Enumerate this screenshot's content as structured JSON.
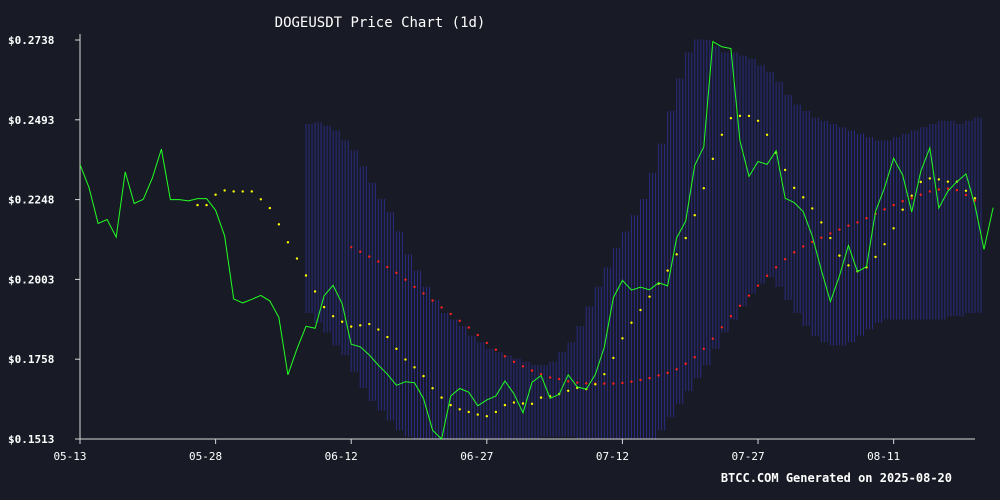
{
  "chart_data": {
    "type": "line",
    "title": "DOGEUSDT Price Chart (1d)",
    "footer": "BTCC.COM Generated on 2025-08-20",
    "y_ticks": [
      {
        "value": 0.2738,
        "label": "$0.2738"
      },
      {
        "value": 0.2493,
        "label": "$0.2493"
      },
      {
        "value": 0.2248,
        "label": "$0.2248"
      },
      {
        "value": 0.2003,
        "label": "$0.2003"
      },
      {
        "value": 0.1758,
        "label": "$0.1758"
      },
      {
        "value": 0.1513,
        "label": "$0.1513"
      }
    ],
    "ylim": [
      0.1513,
      0.2738
    ],
    "x_ticks": [
      {
        "index": 0,
        "label": "05-13"
      },
      {
        "index": 15,
        "label": "05-28"
      },
      {
        "index": 30,
        "label": "06-12"
      },
      {
        "index": 45,
        "label": "06-27"
      },
      {
        "index": 60,
        "label": "07-12"
      },
      {
        "index": 75,
        "label": "07-27"
      },
      {
        "index": 90,
        "label": "08-11"
      }
    ],
    "x_count": 100,
    "price": [
      0.2356,
      0.2285,
      0.2175,
      0.2187,
      0.2133,
      0.2333,
      0.2236,
      0.2249,
      0.2314,
      0.2403,
      0.2248,
      0.2248,
      0.2244,
      0.2251,
      0.2251,
      0.2215,
      0.2137,
      0.1943,
      0.1931,
      0.1942,
      0.1954,
      0.1937,
      0.1886,
      0.171,
      0.179,
      0.1859,
      0.1853,
      0.1953,
      0.1985,
      0.1928,
      0.1804,
      0.1796,
      0.1771,
      0.174,
      0.1712,
      0.1678,
      0.1689,
      0.1686,
      0.1637,
      0.154,
      0.1513,
      0.1645,
      0.1668,
      0.1657,
      0.1615,
      0.1633,
      0.1645,
      0.1691,
      0.1652,
      0.1593,
      0.1687,
      0.1708,
      0.1638,
      0.165,
      0.171,
      0.1673,
      0.1666,
      0.1711,
      0.1795,
      0.1947,
      0.2,
      0.197,
      0.1979,
      0.1971,
      0.1993,
      0.1983,
      0.2131,
      0.2182,
      0.2353,
      0.241,
      0.2733,
      0.2717,
      0.2712,
      0.2429,
      0.2319,
      0.2365,
      0.2356,
      0.2398,
      0.2252,
      0.2239,
      0.2211,
      0.2136,
      0.2032,
      0.1935,
      0.2013,
      0.2107,
      0.2027,
      0.2042,
      0.2212,
      0.2285,
      0.2375,
      0.2323,
      0.221,
      0.2335,
      0.2407,
      0.2222,
      0.2274,
      0.2303,
      0.2327,
      0.223,
      0.2095,
      0.2223
    ],
    "bollinger_upper": [
      null,
      null,
      null,
      null,
      null,
      null,
      null,
      null,
      null,
      null,
      null,
      null,
      null,
      null,
      null,
      null,
      null,
      null,
      null,
      null,
      null,
      null,
      null,
      null,
      null,
      0.248,
      0.2485,
      0.2475,
      0.246,
      0.243,
      0.24,
      0.235,
      0.23,
      0.225,
      0.221,
      0.215,
      0.208,
      0.203,
      0.198,
      0.194,
      0.19,
      0.188,
      0.186,
      0.183,
      0.181,
      0.179,
      0.178,
      0.177,
      0.176,
      0.175,
      0.174,
      0.174,
      0.175,
      0.178,
      0.181,
      0.186,
      0.192,
      0.198,
      0.204,
      0.21,
      0.215,
      0.22,
      0.225,
      0.233,
      0.242,
      0.252,
      0.262,
      0.27,
      0.274,
      0.2738,
      0.272,
      0.27,
      0.27,
      0.269,
      0.268,
      0.266,
      0.264,
      0.261,
      0.257,
      0.254,
      0.252,
      0.25,
      0.249,
      0.248,
      0.247,
      0.246,
      0.245,
      0.244,
      0.243,
      0.243,
      0.244,
      0.245,
      0.246,
      0.247,
      0.248,
      0.249,
      0.249,
      0.248,
      0.249,
      0.25
    ],
    "bollinger_lower": [
      null,
      null,
      null,
      null,
      null,
      null,
      null,
      null,
      null,
      null,
      null,
      null,
      null,
      null,
      null,
      null,
      null,
      null,
      null,
      null,
      null,
      null,
      null,
      null,
      null,
      0.19,
      0.187,
      0.184,
      0.18,
      0.177,
      0.172,
      0.167,
      0.163,
      0.16,
      0.157,
      0.154,
      0.152,
      0.151,
      0.15,
      0.149,
      0.148,
      0.148,
      0.148,
      0.148,
      0.148,
      0.149,
      0.149,
      0.15,
      0.15,
      0.15,
      0.151,
      0.152,
      0.152,
      0.152,
      0.152,
      0.151,
      0.15,
      0.149,
      0.147,
      0.146,
      0.146,
      0.147,
      0.149,
      0.151,
      0.154,
      0.158,
      0.162,
      0.166,
      0.17,
      0.174,
      0.179,
      0.184,
      0.188,
      0.192,
      0.196,
      0.199,
      0.201,
      0.198,
      0.194,
      0.19,
      0.186,
      0.183,
      0.181,
      0.18,
      0.18,
      0.181,
      0.183,
      0.185,
      0.187,
      0.188,
      0.188,
      0.188,
      0.188,
      0.188,
      0.188,
      0.188,
      0.189,
      0.189,
      0.19,
      0.19
    ],
    "ma_fast": [
      null,
      null,
      null,
      null,
      null,
      null,
      null,
      null,
      null,
      null,
      null,
      null,
      null,
      0.2231,
      0.2231,
      0.2263,
      0.2276,
      0.2273,
      0.2273,
      0.2273,
      0.2249,
      0.2222,
      0.2172,
      0.2117,
      0.2067,
      0.2015,
      0.1966,
      0.1918,
      0.189,
      0.1873,
      0.1858,
      0.1862,
      0.1866,
      0.1849,
      0.1826,
      0.179,
      0.1757,
      0.1733,
      0.1706,
      0.1669,
      0.164,
      0.1617,
      0.1604,
      0.1596,
      0.1588,
      0.1583,
      0.1596,
      0.1617,
      0.1625,
      0.1622,
      0.1621,
      0.164,
      0.1644,
      0.1651,
      0.1661,
      0.167,
      0.1666,
      0.1681,
      0.1712,
      0.1762,
      0.1822,
      0.187,
      0.1909,
      0.195,
      0.199,
      0.203,
      0.208,
      0.213,
      0.22,
      0.2283,
      0.2373,
      0.2447,
      0.2498,
      0.2505,
      0.2505,
      0.249,
      0.2447,
      0.2392,
      0.2339,
      0.2284,
      0.2255,
      0.2221,
      0.2178,
      0.213,
      0.2076,
      0.2046,
      0.2028,
      0.204,
      0.2072,
      0.2111,
      0.216,
      0.2217,
      0.226,
      0.2302,
      0.2313,
      0.231,
      0.2303,
      0.2303,
      0.2275,
      0.2252
    ],
    "ma_slow": [
      null,
      null,
      null,
      null,
      null,
      null,
      null,
      null,
      null,
      null,
      null,
      null,
      null,
      null,
      null,
      null,
      null,
      null,
      null,
      null,
      null,
      null,
      null,
      null,
      null,
      null,
      null,
      null,
      null,
      null,
      0.2102,
      0.2088,
      0.2073,
      0.2058,
      0.2041,
      0.2023,
      0.2002,
      0.198,
      0.196,
      0.1938,
      0.1917,
      0.1897,
      0.1876,
      0.1855,
      0.1832,
      0.1808,
      0.1787,
      0.1767,
      0.175,
      0.1736,
      0.1723,
      0.1712,
      0.1702,
      0.1697,
      0.169,
      0.1686,
      0.1684,
      0.1683,
      0.1683,
      0.1683,
      0.1685,
      0.1689,
      0.1694,
      0.17,
      0.1708,
      0.1716,
      0.1727,
      0.1744,
      0.1764,
      0.179,
      0.1821,
      0.1856,
      0.189,
      0.1922,
      0.1953,
      0.1984,
      0.2014,
      0.204,
      0.2065,
      0.2086,
      0.2104,
      0.2118,
      0.2131,
      0.2144,
      0.2156,
      0.2168,
      0.2178,
      0.2191,
      0.2204,
      0.2218,
      0.2231,
      0.2243,
      0.2252,
      0.2263,
      0.2273,
      0.2279,
      0.2282,
      0.2277,
      0.2262,
      0.2245
    ],
    "colors": {
      "background": "#181b25",
      "price": "#22ff22",
      "ma_fast": "#ffff00",
      "ma_slow": "#ff2020",
      "band": "#3232a8",
      "axis": "#d8d8d8",
      "text": "#ffffff"
    },
    "grid": false
  }
}
